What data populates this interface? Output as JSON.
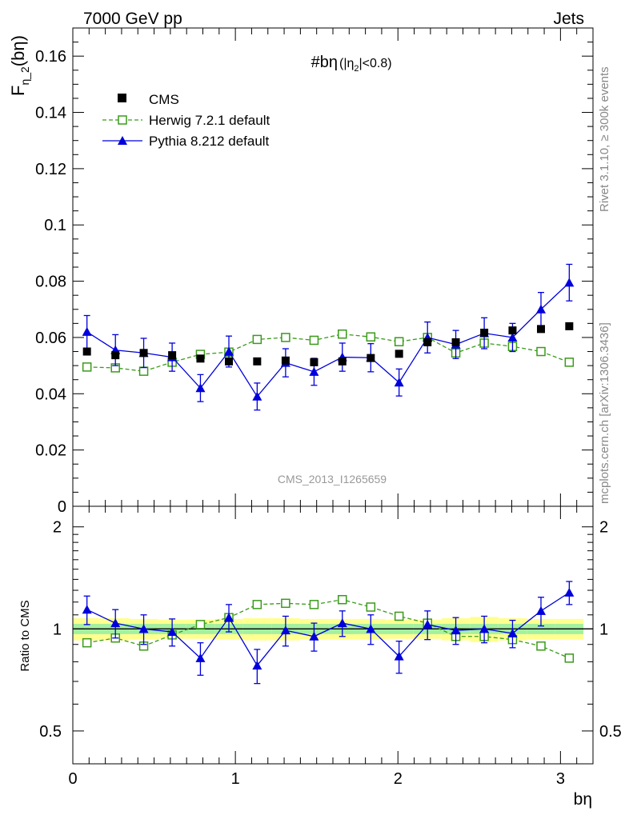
{
  "header": {
    "left": "7000 GeV pp",
    "right": "Jets",
    "side_top": "Rivet 3.1.10, ≥ 300k events",
    "side_bottom": "mcplots.cern.ch [arXiv:1306.3436]",
    "watermark": "CMS_2013_I1265659"
  },
  "colors": {
    "cms": "#000000",
    "herwig": "#3a9a1a",
    "pythia": "#0000dd",
    "band_inner": "#a4f0a0",
    "band_outer": "#ffff90"
  },
  "chart_data": [
    {
      "type": "scatter",
      "panel": "main",
      "title": "#bη",
      "title_suffix_open": " (|η",
      "title_suffix_sub": "2",
      "title_suffix_close": "|<0.8)",
      "ylabel_main": "F",
      "ylabel_sub": "η_2",
      "ylabel_end": "(bη)",
      "xlabel": "bη",
      "xlim": [
        0,
        3.2
      ],
      "ylim": [
        0,
        0.17
      ],
      "yticks": [
        0,
        0.02,
        0.04,
        0.06,
        0.08,
        0.1,
        0.12,
        0.14,
        0.16
      ],
      "ytick_labels": [
        "0",
        "0.02",
        "0.04",
        "0.06",
        "0.08",
        "0.1",
        "0.12",
        "0.14",
        "0.16"
      ],
      "x": [
        0.087,
        0.262,
        0.436,
        0.611,
        0.785,
        0.96,
        1.134,
        1.309,
        1.484,
        1.658,
        1.833,
        2.007,
        2.182,
        2.356,
        2.531,
        2.705,
        2.88,
        3.054
      ],
      "legend": {
        "placement": "top-left",
        "entries": [
          "CMS",
          "Herwig 7.2.1 default",
          "Pythia 8.212 default"
        ]
      },
      "series": [
        {
          "name": "CMS",
          "marker": "square-filled",
          "values": [
            0.055,
            0.0537,
            0.0545,
            0.0537,
            0.0525,
            0.0515,
            0.0515,
            0.0518,
            0.0512,
            0.0515,
            0.0527,
            0.0542,
            0.0583,
            0.0583,
            0.0617,
            0.0625,
            0.063,
            0.064
          ]
        },
        {
          "name": "Herwig 7.2.1 default",
          "marker": "square-open",
          "line": "dashed",
          "values": [
            0.0495,
            0.0492,
            0.048,
            0.0512,
            0.054,
            0.0548,
            0.0593,
            0.06,
            0.059,
            0.0612,
            0.0602,
            0.0585,
            0.06,
            0.0545,
            0.058,
            0.0568,
            0.055,
            0.0512
          ],
          "errors": [
            0.001,
            0.001,
            0.001,
            0.001,
            0.001,
            0.001,
            0.001,
            0.001,
            0.001,
            0.001,
            0.001,
            0.001,
            0.001,
            0.001,
            0.001,
            0.001,
            0.001,
            0.001
          ]
        },
        {
          "name": "Pythia 8.212 default",
          "marker": "triangle-filled",
          "line": "solid",
          "values": [
            0.062,
            0.0555,
            0.0545,
            0.053,
            0.042,
            0.055,
            0.039,
            0.051,
            0.0478,
            0.053,
            0.0528,
            0.044,
            0.06,
            0.0575,
            0.0615,
            0.06,
            0.07,
            0.0795
          ],
          "errors": [
            0.0058,
            0.0055,
            0.0052,
            0.005,
            0.0048,
            0.0055,
            0.0048,
            0.005,
            0.0048,
            0.005,
            0.005,
            0.0048,
            0.0055,
            0.005,
            0.0055,
            0.005,
            0.006,
            0.0065
          ]
        }
      ]
    },
    {
      "type": "scatter",
      "panel": "ratio",
      "ylabel": "Ratio to CMS",
      "xlim": [
        0,
        3.2
      ],
      "ylim": [
        0.4,
        2.3
      ],
      "scale": "log",
      "yticks": [
        0.5,
        1,
        2
      ],
      "ytick_labels": [
        "0.5",
        "1",
        "2"
      ],
      "xticks": [
        0,
        1,
        2,
        3
      ],
      "xtick_labels": [
        "0",
        "1",
        "2",
        "3"
      ],
      "band": {
        "x_edges": [
          0,
          0.175,
          0.349,
          0.524,
          0.698,
          0.873,
          1.047,
          1.222,
          1.396,
          1.571,
          1.745,
          1.92,
          2.094,
          2.269,
          2.443,
          2.618,
          2.793,
          2.967,
          3.141
        ],
        "inner": [
          0.035,
          0.035,
          0.035,
          0.035,
          0.035,
          0.035,
          0.035,
          0.035,
          0.035,
          0.035,
          0.035,
          0.035,
          0.035,
          0.035,
          0.035,
          0.035,
          0.035,
          0.035
        ],
        "outer": [
          0.075,
          0.075,
          0.07,
          0.065,
          0.065,
          0.07,
          0.075,
          0.075,
          0.07,
          0.07,
          0.07,
          0.065,
          0.065,
          0.075,
          0.085,
          0.075,
          0.07,
          0.07
        ]
      },
      "series": [
        {
          "name": "Herwig 7.2.1 default",
          "values": [
            0.91,
            0.94,
            0.89,
            0.96,
            1.03,
            1.08,
            1.18,
            1.19,
            1.18,
            1.22,
            1.16,
            1.09,
            1.04,
            0.95,
            0.95,
            0.93,
            0.89,
            0.82
          ]
        },
        {
          "name": "Pythia 8.212 default",
          "values": [
            1.14,
            1.04,
            1.0,
            0.98,
            0.82,
            1.08,
            0.78,
            0.99,
            0.95,
            1.04,
            1.0,
            0.83,
            1.03,
            0.99,
            1.0,
            0.97,
            1.13,
            1.28
          ],
          "errors": [
            0.11,
            0.1,
            0.1,
            0.09,
            0.09,
            0.1,
            0.09,
            0.1,
            0.09,
            0.09,
            0.1,
            0.09,
            0.1,
            0.09,
            0.09,
            0.09,
            0.11,
            0.1
          ]
        }
      ]
    }
  ]
}
